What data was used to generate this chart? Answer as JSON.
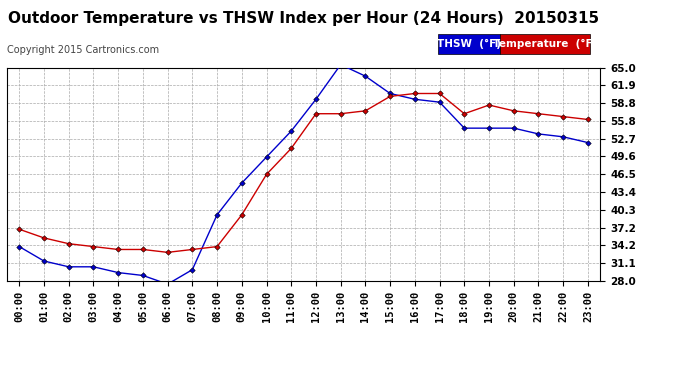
{
  "title": "Outdoor Temperature vs THSW Index per Hour (24 Hours)  20150315",
  "copyright": "Copyright 2015 Cartronics.com",
  "hours": [
    "00:00",
    "01:00",
    "02:00",
    "03:00",
    "04:00",
    "05:00",
    "06:00",
    "07:00",
    "08:00",
    "09:00",
    "10:00",
    "11:00",
    "12:00",
    "13:00",
    "14:00",
    "15:00",
    "16:00",
    "17:00",
    "18:00",
    "19:00",
    "20:00",
    "21:00",
    "22:00",
    "23:00"
  ],
  "thsw": [
    34.0,
    31.5,
    30.5,
    30.5,
    29.5,
    29.0,
    27.5,
    30.0,
    39.5,
    45.0,
    49.5,
    54.0,
    59.5,
    65.5,
    63.5,
    60.5,
    59.5,
    59.0,
    54.5,
    54.5,
    54.5,
    53.5,
    53.0,
    52.0
  ],
  "temperature": [
    37.0,
    35.5,
    34.5,
    34.0,
    33.5,
    33.5,
    33.0,
    33.5,
    34.0,
    39.5,
    46.5,
    51.0,
    57.0,
    57.0,
    57.5,
    60.0,
    60.5,
    60.5,
    57.0,
    58.5,
    57.5,
    57.0,
    56.5,
    56.0
  ],
  "ylim_min": 28.0,
  "ylim_max": 65.0,
  "yticks": [
    28.0,
    31.1,
    34.2,
    37.2,
    40.3,
    43.4,
    46.5,
    49.6,
    52.7,
    55.8,
    58.8,
    61.9,
    65.0
  ],
  "thsw_color": "#0000cc",
  "temp_color": "#cc0000",
  "bg_color": "#ffffff",
  "plot_bg_color": "#ffffff",
  "grid_color": "#aaaaaa",
  "legend_thsw_bg": "#0000cc",
  "legend_temp_bg": "#cc0000",
  "title_fontsize": 11,
  "copyright_fontsize": 7,
  "tick_fontsize": 7.5
}
